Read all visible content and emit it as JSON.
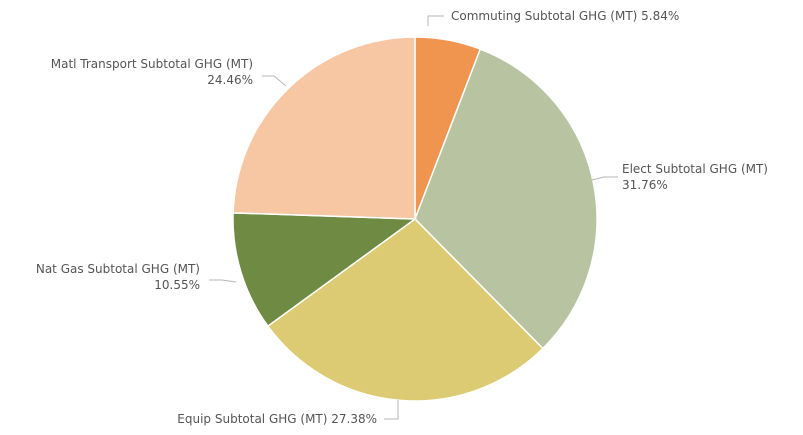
{
  "chart_data": {
    "type": "pie",
    "title": "",
    "slices": [
      {
        "label": "Commuting Subtotal GHG (MT)",
        "value": 5.84,
        "value_label": "5.84%",
        "color": "#EF9550"
      },
      {
        "label": "Elect Subtotal GHG (MT)",
        "value": 31.76,
        "value_label": "31.76%",
        "color": "#B8C4A1"
      },
      {
        "label": "Equip Subtotal GHG (MT)",
        "value": 27.38,
        "value_label": "27.38%",
        "color": "#DCCB72"
      },
      {
        "label": "Nat Gas Subtotal GHG (MT)",
        "value": 10.55,
        "value_label": "10.55%",
        "color": "#6E8A43"
      },
      {
        "label": "Matl Transport Subtotal GHG (MT)",
        "value": 24.46,
        "value_label": "24.46%",
        "color": "#F7C6A3"
      }
    ]
  }
}
